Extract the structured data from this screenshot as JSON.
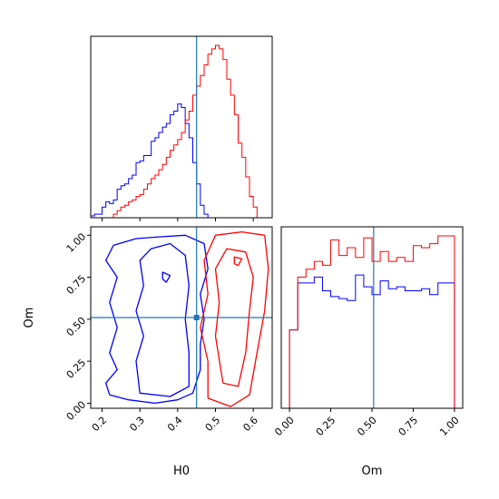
{
  "chart_data": [
    {
      "type": "histogram",
      "panel": "marginal-H0",
      "xlim": [
        0.17,
        0.65
      ],
      "x_edges": [
        0.17,
        0.18,
        0.19,
        0.2,
        0.21,
        0.22,
        0.23,
        0.24,
        0.25,
        0.26,
        0.27,
        0.28,
        0.29,
        0.3,
        0.31,
        0.32,
        0.33,
        0.34,
        0.35,
        0.36,
        0.37,
        0.38,
        0.39,
        0.4,
        0.41,
        0.42,
        0.43,
        0.44,
        0.45,
        0.46,
        0.47,
        0.48,
        0.49,
        0.5,
        0.51,
        0.52,
        0.53,
        0.54,
        0.55,
        0.56,
        0.57,
        0.58,
        0.59,
        0.6,
        0.61,
        0.62,
        0.63,
        0.64,
        0.65
      ],
      "series": [
        {
          "color": "#0000ff",
          "values": [
            0.01,
            0.02,
            0.02,
            0.06,
            0.09,
            0.08,
            0.1,
            0.16,
            0.18,
            0.19,
            0.22,
            0.24,
            0.31,
            0.32,
            0.35,
            0.35,
            0.43,
            0.45,
            0.48,
            0.51,
            0.53,
            0.58,
            0.6,
            0.64,
            0.62,
            0.53,
            0.45,
            0.31,
            0.19,
            0.07,
            0.02,
            0.0,
            0.0,
            0,
            0,
            0,
            0,
            0,
            0,
            0,
            0,
            0,
            0,
            0,
            0,
            0,
            0,
            0
          ]
        },
        {
          "color": "#ff0000",
          "values": [
            0,
            0,
            0,
            0,
            0,
            0,
            0.02,
            0.04,
            0.06,
            0.07,
            0.09,
            0.1,
            0.12,
            0.13,
            0.16,
            0.19,
            0.22,
            0.24,
            0.27,
            0.3,
            0.34,
            0.38,
            0.41,
            0.44,
            0.48,
            0.55,
            0.6,
            0.69,
            0.74,
            0.8,
            0.86,
            0.92,
            0.95,
            0.97,
            0.95,
            0.89,
            0.78,
            0.69,
            0.58,
            0.42,
            0.34,
            0.23,
            0.12,
            0.06,
            0,
            0,
            0,
            0
          ]
        }
      ],
      "truth_x": 0.45
    },
    {
      "type": "contour",
      "panel": "joint-H0-Om",
      "xlabel": "H0",
      "ylabel": "Om",
      "xlim": [
        0.17,
        0.65
      ],
      "ylim": [
        -0.03,
        1.05
      ],
      "xticks": [
        "0.2",
        "0.3",
        "0.4",
        "0.5",
        "0.6"
      ],
      "yticks": [
        "0.00",
        "0.25",
        "0.50",
        "0.75",
        "1.00"
      ],
      "truth": [
        0.45,
        0.51
      ],
      "series": [
        {
          "color": "#0000ff",
          "contours": [
            [
              [
                0.22,
                0.05
              ],
              [
                0.27,
                0.02
              ],
              [
                0.34,
                0.0
              ],
              [
                0.4,
                0.02
              ],
              [
                0.44,
                0.06
              ],
              [
                0.46,
                0.2
              ],
              [
                0.46,
                0.35
              ],
              [
                0.47,
                0.5
              ],
              [
                0.46,
                0.65
              ],
              [
                0.48,
                0.8
              ],
              [
                0.47,
                0.95
              ],
              [
                0.42,
                1.0
              ],
              [
                0.35,
                0.99
              ],
              [
                0.29,
                0.98
              ],
              [
                0.23,
                0.94
              ],
              [
                0.21,
                0.85
              ],
              [
                0.24,
                0.75
              ],
              [
                0.22,
                0.6
              ],
              [
                0.24,
                0.45
              ],
              [
                0.22,
                0.3
              ],
              [
                0.24,
                0.2
              ],
              [
                0.21,
                0.12
              ],
              [
                0.22,
                0.05
              ]
            ],
            [
              [
                0.3,
                0.06
              ],
              [
                0.38,
                0.04
              ],
              [
                0.43,
                0.1
              ],
              [
                0.43,
                0.3
              ],
              [
                0.42,
                0.5
              ],
              [
                0.43,
                0.7
              ],
              [
                0.42,
                0.88
              ],
              [
                0.38,
                0.95
              ],
              [
                0.33,
                0.92
              ],
              [
                0.3,
                0.85
              ],
              [
                0.31,
                0.7
              ],
              [
                0.29,
                0.55
              ],
              [
                0.31,
                0.4
              ],
              [
                0.29,
                0.25
              ],
              [
                0.3,
                0.06
              ]
            ],
            [
              [
                0.36,
                0.74
              ],
              [
                0.37,
                0.72
              ],
              [
                0.38,
                0.76
              ],
              [
                0.36,
                0.78
              ],
              [
                0.36,
                0.74
              ]
            ]
          ]
        },
        {
          "color": "#ff0000",
          "contours": [
            [
              [
                0.48,
                0.03
              ],
              [
                0.54,
                -0.02
              ],
              [
                0.59,
                0.05
              ],
              [
                0.61,
                0.3
              ],
              [
                0.63,
                0.55
              ],
              [
                0.64,
                0.8
              ],
              [
                0.63,
                1.0
              ],
              [
                0.57,
                1.02
              ],
              [
                0.5,
                1.0
              ],
              [
                0.47,
                0.85
              ],
              [
                0.48,
                0.65
              ],
              [
                0.46,
                0.45
              ],
              [
                0.48,
                0.25
              ],
              [
                0.48,
                0.03
              ]
            ],
            [
              [
                0.52,
                0.12
              ],
              [
                0.56,
                0.1
              ],
              [
                0.58,
                0.3
              ],
              [
                0.59,
                0.55
              ],
              [
                0.6,
                0.75
              ],
              [
                0.58,
                0.9
              ],
              [
                0.53,
                0.92
              ],
              [
                0.5,
                0.8
              ],
              [
                0.51,
                0.6
              ],
              [
                0.5,
                0.4
              ],
              [
                0.52,
                0.12
              ]
            ],
            [
              [
                0.55,
                0.83
              ],
              [
                0.56,
                0.82
              ],
              [
                0.57,
                0.86
              ],
              [
                0.55,
                0.87
              ],
              [
                0.55,
                0.83
              ]
            ]
          ]
        }
      ]
    },
    {
      "type": "histogram",
      "panel": "marginal-Om",
      "xlabel": "Om",
      "xlim": [
        -0.05,
        1.05
      ],
      "xticks": [
        "0.00",
        "0.25",
        "0.50",
        "0.75",
        "1.00"
      ],
      "x_edges": [
        -0.05,
        0.0,
        0.05,
        0.1,
        0.15,
        0.2,
        0.25,
        0.3,
        0.35,
        0.4,
        0.45,
        0.5,
        0.55,
        0.6,
        0.65,
        0.7,
        0.75,
        0.8,
        0.85,
        0.9,
        0.95,
        1.0,
        1.05
      ],
      "series": [
        {
          "color": "#0000ff",
          "values": [
            0.0,
            0.4,
            0.64,
            0.64,
            0.67,
            0.6,
            0.57,
            0.56,
            0.55,
            0.68,
            0.62,
            0.58,
            0.65,
            0.61,
            0.62,
            0.6,
            0.6,
            0.61,
            0.58,
            0.64,
            0.64,
            0.0
          ]
        },
        {
          "color": "#ff0000",
          "values": [
            0.0,
            0.4,
            0.67,
            0.71,
            0.75,
            0.73,
            0.86,
            0.78,
            0.82,
            0.77,
            0.87,
            0.75,
            0.8,
            0.75,
            0.77,
            0.75,
            0.83,
            0.82,
            0.84,
            0.88,
            0.88,
            0.0
          ]
        }
      ],
      "truth_x": 0.51
    }
  ]
}
